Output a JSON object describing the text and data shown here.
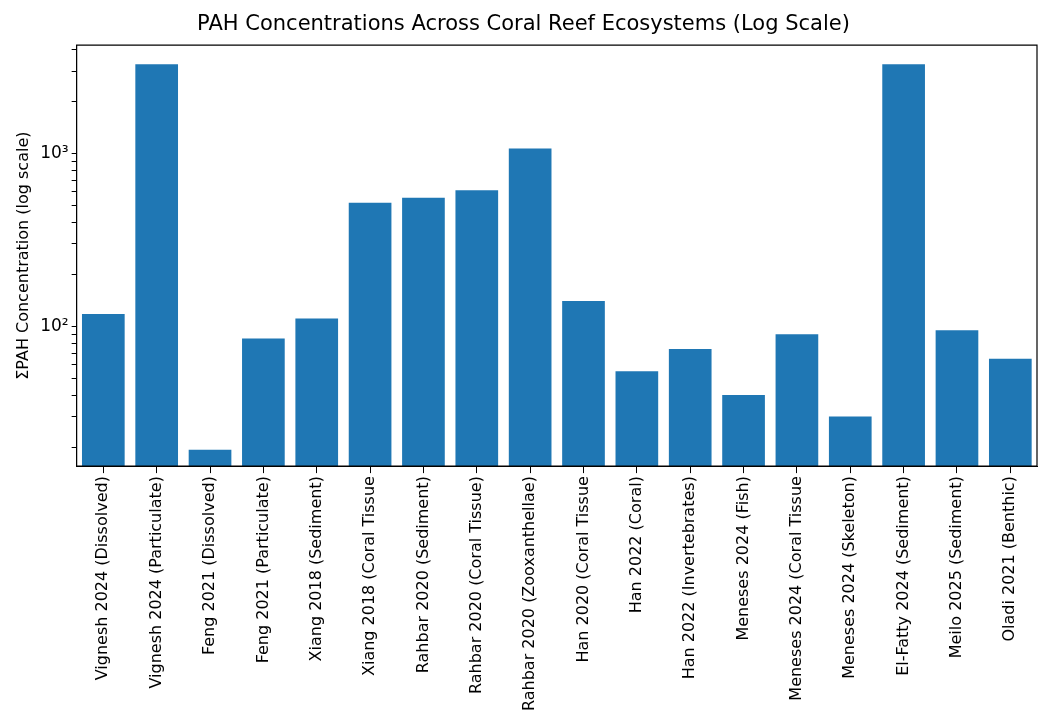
{
  "chart_data": {
    "type": "bar",
    "title": "PAH Concentrations Across Coral Reef Ecosystems (Log Scale)",
    "ylabel": "ΣPAH Concentration (log scale)",
    "categories": [
      "Vignesh 2024 (Dissolved)",
      "Vignesh 2024 (Particulate)",
      "Feng 2021 (Dissolved)",
      "Feng 2021 (Particulate)",
      "Xiang 2018 (Sediment)",
      "Xiang 2018 (Coral Tissue",
      "Rahbar 2020 (Sediment)",
      "Rahbar 2020 (Coral Tissue)",
      "Rahbar 2020 (Zooxanthellae)",
      "Han 2020 (Coral Tissue",
      "Han 2022 (Coral)",
      "Han 2022 (Invertebrates)",
      "Meneses 2024 (Fish)",
      "Meneses 2024 (Coral Tissue",
      "Meneses 2024 (Skeleton)",
      "El-Fatty 2024 (Sediment)",
      "Meilo 2025 (Sediment)",
      "Oladi 2021 (Benthic)"
    ],
    "values": [
      118,
      3300,
      19.3,
      85,
      111,
      520,
      556,
      614,
      1070,
      140,
      55,
      74,
      40,
      90,
      30,
      3300,
      95,
      65
    ],
    "color": "#1f77b4",
    "log": true,
    "ylim": [
      15.5,
      4250
    ],
    "yticks": [
      {
        "value": 20,
        "label": null
      },
      {
        "value": 30,
        "label": null
      },
      {
        "value": 40,
        "label": null
      },
      {
        "value": 50,
        "label": null
      },
      {
        "value": 60,
        "label": null
      },
      {
        "value": 70,
        "label": null
      },
      {
        "value": 80,
        "label": null
      },
      {
        "value": 90,
        "label": null
      },
      {
        "value": 100,
        "label": "10²"
      },
      {
        "value": 200,
        "label": null
      },
      {
        "value": 300,
        "label": null
      },
      {
        "value": 400,
        "label": null
      },
      {
        "value": 500,
        "label": null
      },
      {
        "value": 600,
        "label": null
      },
      {
        "value": 700,
        "label": null
      },
      {
        "value": 800,
        "label": null
      },
      {
        "value": 900,
        "label": null
      },
      {
        "value": 1000,
        "label": "10³"
      },
      {
        "value": 2000,
        "label": null
      },
      {
        "value": 3000,
        "label": null
      },
      {
        "value": 4000,
        "label": null
      }
    ],
    "grid": false,
    "legend": false
  }
}
